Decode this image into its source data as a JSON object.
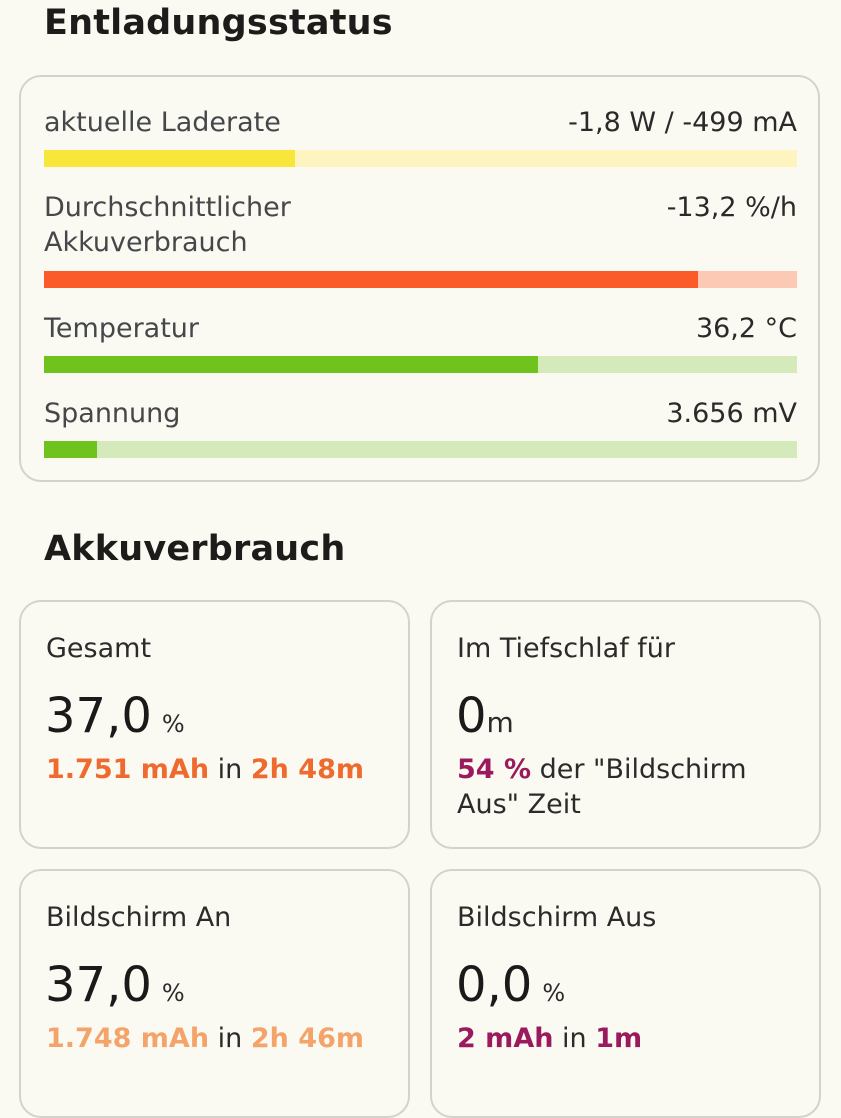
{
  "discharge_status": {
    "title": "Entladungsstatus",
    "metrics": [
      {
        "label": "aktuelle Laderate",
        "value": "-1,8 W / -499 mA",
        "fill_fraction": 0.333,
        "fill_color": "#f8e63a",
        "track_color": "#fdf4c0"
      },
      {
        "label": "Durchschnittlicher Akkuverbrauch",
        "value": "-13,2 %/h",
        "fill_fraction": 0.868,
        "fill_color": "#fb5b28",
        "track_color": "#fcc9b4"
      },
      {
        "label": "Temperatur",
        "value": "36,2 °C",
        "fill_fraction": 0.656,
        "fill_color": "#6fc31c",
        "track_color": "#d5eabb"
      },
      {
        "label": "Spannung",
        "value": "3.656 mV",
        "fill_fraction": 0.07,
        "fill_color": "#6fc31c",
        "track_color": "#d5eabb"
      }
    ]
  },
  "battery_usage": {
    "title": "Akkuverbrauch",
    "tiles": {
      "total": {
        "label": "Gesamt",
        "value": "37,0",
        "unit": "%",
        "mah": "1.751 mAh",
        "connector": "in",
        "duration": "2h 48m",
        "accent_color": "#ef6a2e"
      },
      "deep_sleep": {
        "label": "Im Tiefschlaf für",
        "value": "0",
        "unit": "m",
        "percent": "54 %",
        "detail_text": "der \"Bildschirm Aus\" Zeit",
        "accent_color": "#9b1a5e"
      },
      "screen_on": {
        "label": "Bildschirm An",
        "value": "37,0",
        "unit": "%",
        "mah": "1.748 mAh",
        "connector": "in",
        "duration": "2h 46m",
        "accent_color": "#f3a46a"
      },
      "screen_off": {
        "label": "Bildschirm Aus",
        "value": "0,0",
        "unit": "%",
        "mah": "2 mAh",
        "connector": "in",
        "duration": "1m",
        "accent_color": "#9b1a5e"
      }
    }
  }
}
